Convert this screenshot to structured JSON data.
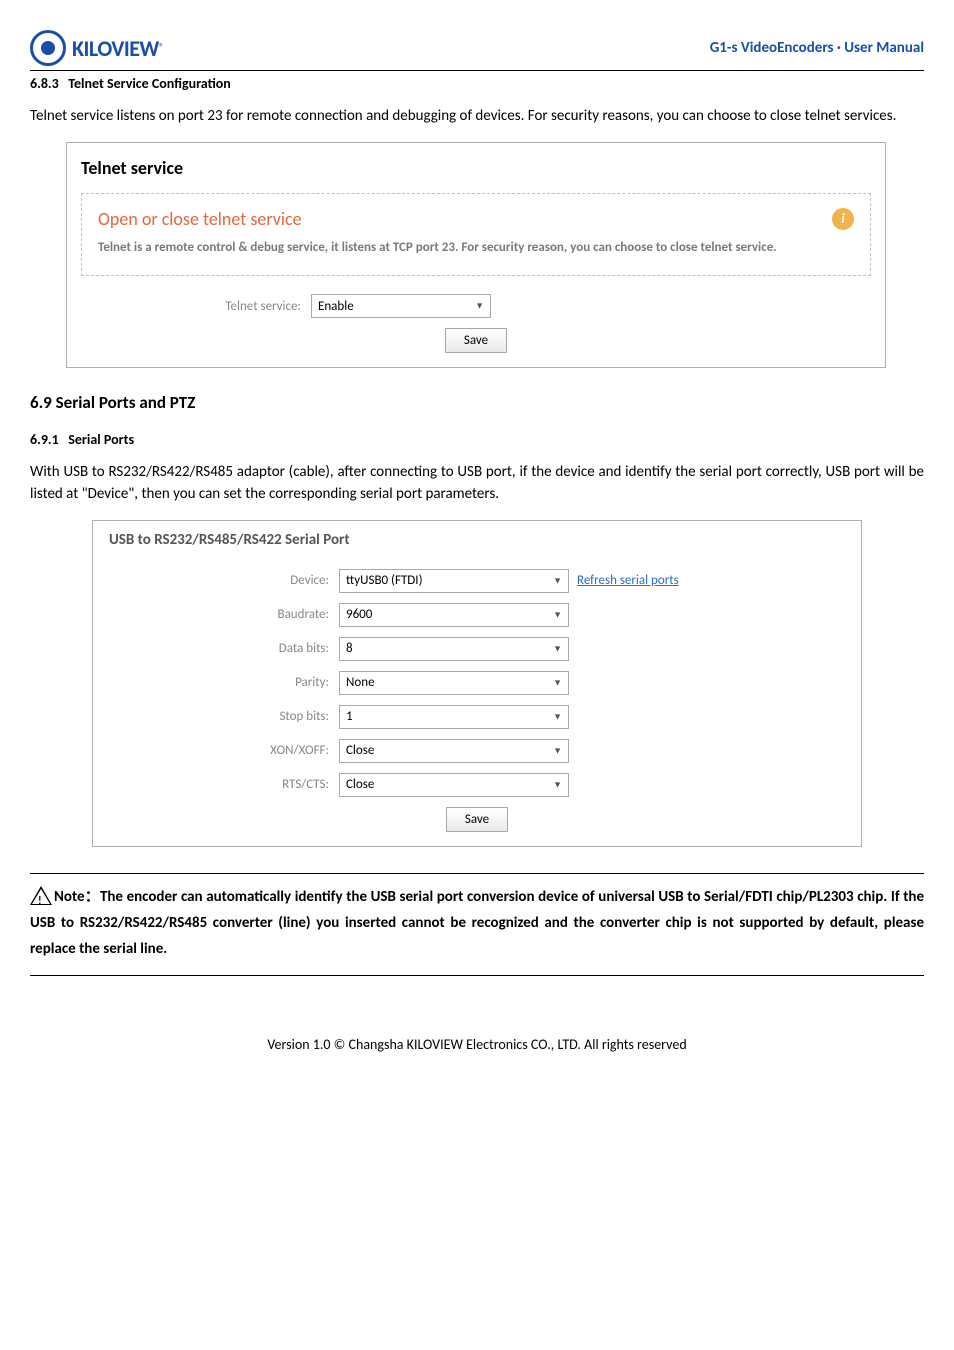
{
  "header": {
    "logo_text": "KILOVIEW",
    "title": "G1-s VideoEncoders · User Manual"
  },
  "sec_683": {
    "number": "6.8.3",
    "title": "Telnet Service Configuration",
    "body": "Telnet service listens on port 23 for remote connection and debugging of devices. For security reasons, you can choose to close telnet services."
  },
  "telnet_panel": {
    "title": "Telnet service",
    "box_heading": "Open or close telnet service",
    "box_desc": "Telnet is a remote control & debug service, it listens at TCP port 23. For security reason, you can choose to close telnet service.",
    "field_label": "Telnet service:",
    "field_value": "Enable",
    "save_label": "Save"
  },
  "sec_69": {
    "title": "6.9 Serial Ports and PTZ"
  },
  "sec_691": {
    "number": "6.9.1",
    "title": "Serial Ports",
    "body": "With USB to RS232/RS422/RS485 adaptor (cable), after connecting to USB port, if the device and identify the serial port correctly, USB port will be listed at \"Device\", then you can set the corresponding serial port parameters."
  },
  "serial_panel": {
    "title": "USB to RS232/RS485/RS422 Serial Port",
    "refresh_link": "Refresh serial ports",
    "save_label": "Save",
    "rows": [
      {
        "label": "Device:",
        "value": "ttyUSB0 (FTDI)"
      },
      {
        "label": "Baudrate:",
        "value": "9600"
      },
      {
        "label": "Data bits:",
        "value": "8"
      },
      {
        "label": "Parity:",
        "value": "None"
      },
      {
        "label": "Stop bits:",
        "value": "1"
      },
      {
        "label": "XON/XOFF:",
        "value": "Close"
      },
      {
        "label": "RTS/CTS:",
        "value": "Close"
      }
    ]
  },
  "note": {
    "prefix": "Note：",
    "text": "The encoder can automatically identify the USB serial port conversion device of universal USB to Serial/FDTI chip/PL2303 chip. If the USB to RS232/RS422/RS485 converter (line) you inserted cannot be recognized and the converter chip is not supported by default, please replace the serial line."
  },
  "footer": "Version 1.0 © Changsha KILOVIEW Electronics CO., LTD. All rights reserved"
}
